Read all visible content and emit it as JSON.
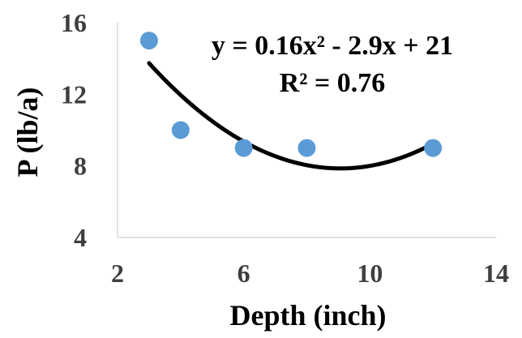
{
  "chart_data": {
    "type": "scatter",
    "xlabel": "Depth (inch)",
    "ylabel": "P (lb/a)",
    "xlim": [
      2,
      14
    ],
    "ylim": [
      4,
      16
    ],
    "x_ticks": [
      2,
      6,
      10,
      14
    ],
    "y_ticks": [
      4,
      8,
      12,
      16
    ],
    "grid": false,
    "marker_color": "#5b9bd5",
    "trendline_color": "#000000",
    "series": [
      {
        "x": [
          3,
          4,
          6,
          8,
          12
        ],
        "y": [
          15,
          10,
          9,
          9,
          9
        ]
      }
    ],
    "trendline": {
      "type": "polynomial",
      "coefficients": [
        0.16,
        -2.9,
        21
      ],
      "x_range": [
        3,
        12
      ],
      "equation": "y = 0.16x² - 2.9x + 21",
      "r2": "R² = 0.76"
    }
  }
}
